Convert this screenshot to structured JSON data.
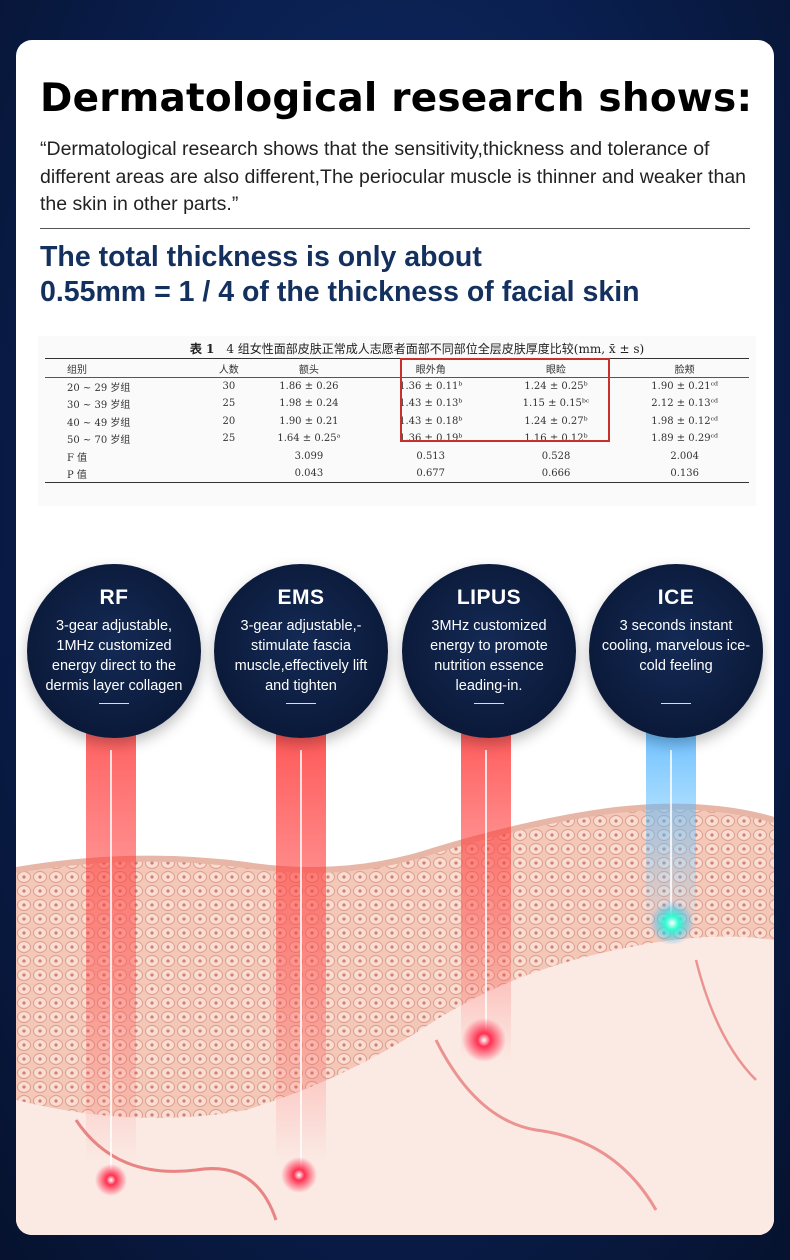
{
  "headline": "Dermatological research shows:",
  "quote": "“Dermatological research shows that the sensitivity,thickness and tolerance of different areas are also different,The periocular muscle is thinner and weaker than the skin in other parts.”",
  "subhead_line1": "The total thickness is only about",
  "subhead_line2": "0.55mm = 1 / 4 of the thickness of facial skin",
  "table": {
    "label": "表 1",
    "caption": "4 组女性面部皮肤正常成人志愿者面部不同部位全层皮肤厚度比较(mm, x̄ ± s)",
    "headers": [
      "组别",
      "人数",
      "额头",
      "眼外角",
      "眼睑",
      "脸颊"
    ],
    "rows": [
      [
        "20 ~ 29 岁组",
        "30",
        "1.86 ± 0.26",
        "1.36 ± 0.11ᵇ",
        "1.24 ± 0.25ᵇ",
        "1.90 ± 0.21ᶜᵈ"
      ],
      [
        "30 ~ 39 岁组",
        "25",
        "1.98 ± 0.24",
        "1.43 ± 0.13ᵇ",
        "1.15 ± 0.15ᵇᶜ",
        "2.12 ± 0.13ᶜᵈ"
      ],
      [
        "40 ~ 49 岁组",
        "20",
        "1.90 ± 0.21",
        "1.43 ± 0.18ᵇ",
        "1.24 ± 0.27ᵇ",
        "1.98 ± 0.12ᶜᵈ"
      ],
      [
        "50 ~ 70 岁组",
        "25",
        "1.64 ± 0.25ᵃ",
        "1.36 ± 0.19ᵇ",
        "1.16 ± 0.12ᵇ",
        "1.89 ± 0.29ᶜᵈ"
      ],
      [
        "F 值",
        "",
        "3.099",
        "0.513",
        "0.528",
        "2.004"
      ],
      [
        "P 值",
        "",
        "0.043",
        "0.677",
        "0.666",
        "0.136"
      ]
    ]
  },
  "features": [
    {
      "title": "RF",
      "desc": "3-gear adjustable, 1MHz customized energy direct to the dermis layer collagen",
      "beam_color": "#ff2a2a"
    },
    {
      "title": "EMS",
      "desc": "3-gear adjustable,- stimulate fascia muscle,effectively lift and tighten",
      "beam_color": "#ff2a2a"
    },
    {
      "title": "LIPUS",
      "desc": "3MHz customized energy to promote nutrition essence leading-in.",
      "beam_color": "#ff2a2a"
    },
    {
      "title": "ICE",
      "desc": "3 seconds instant cooling, marvelous ice-cold feeling",
      "beam_color": "#3fb0ff"
    }
  ],
  "colors": {
    "background": "#0a1f4f",
    "headline": "#000000",
    "subhead": "#13305e",
    "bubble": "#0b1a3a",
    "highlight": "#c9302c"
  }
}
